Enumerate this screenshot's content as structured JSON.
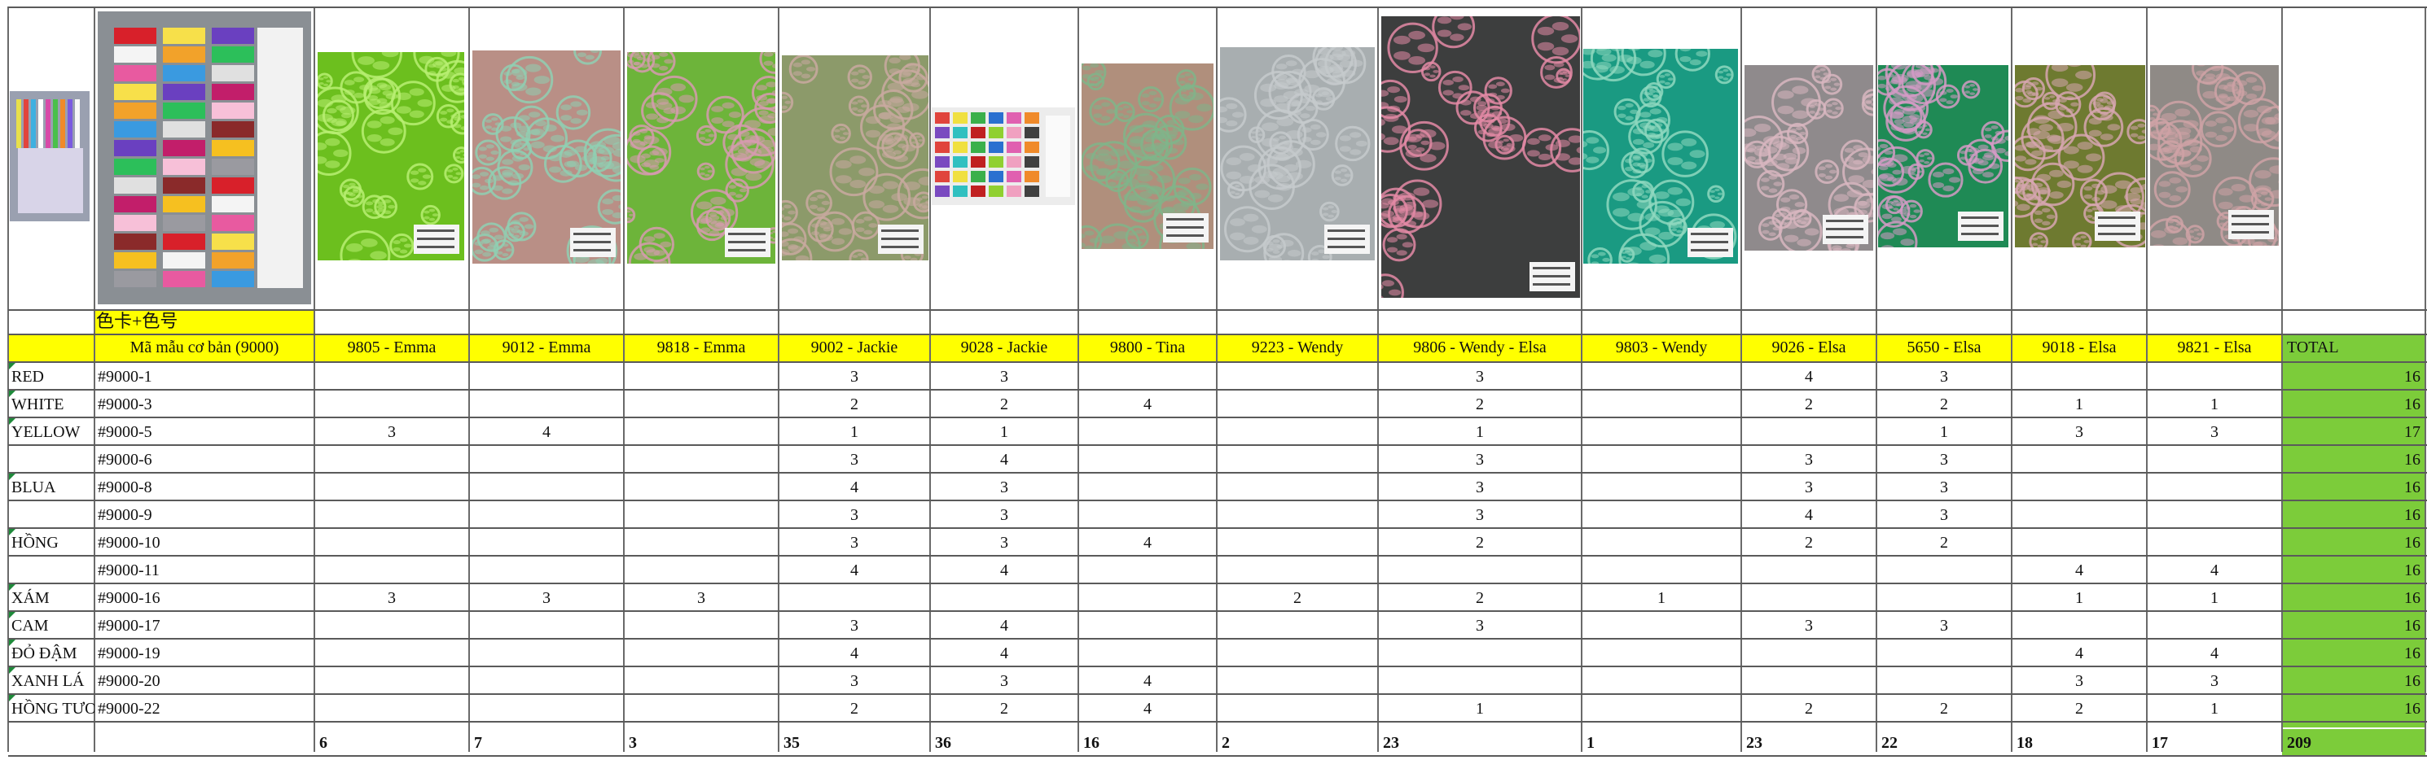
{
  "sheet": {
    "card_label": "色卡+色号",
    "header_code": "Mã mẫu cơ bản (9000)",
    "total_header": "TOTAL",
    "columns": [
      "9805 - Emma",
      "9012 - Emma",
      "9818 - Emma",
      "9002 - Jackie",
      "9028 - Jackie",
      "9800 - Tina",
      "9223 - Wendy",
      "9806 - Wendy - Elsa",
      "9803 - Wendy",
      "9026 - Elsa",
      "5650 - Elsa",
      "9018 - Elsa",
      "9821 - Elsa"
    ],
    "rows": [
      {
        "color": "RED",
        "code": "#9000-1",
        "values": [
          "",
          "",
          "",
          "3",
          "3",
          "",
          "",
          "3",
          "",
          "4",
          "3",
          "",
          ""
        ],
        "total": "16"
      },
      {
        "color": "WHITE",
        "code": "#9000-3",
        "values": [
          "",
          "",
          "",
          "2",
          "2",
          "4",
          "",
          "2",
          "",
          "2",
          "2",
          "1",
          "1"
        ],
        "total": "16"
      },
      {
        "color": "YELLOW",
        "code": "#9000-5",
        "values": [
          "3",
          "4",
          "",
          "1",
          "1",
          "",
          "",
          "1",
          "",
          "",
          "1",
          "3",
          "3"
        ],
        "total": "17"
      },
      {
        "color": "",
        "code": "#9000-6",
        "values": [
          "",
          "",
          "",
          "3",
          "4",
          "",
          "",
          "3",
          "",
          "3",
          "3",
          "",
          ""
        ],
        "total": "16"
      },
      {
        "color": "BLUA",
        "code": "#9000-8",
        "values": [
          "",
          "",
          "",
          "4",
          "3",
          "",
          "",
          "3",
          "",
          "3",
          "3",
          "",
          ""
        ],
        "total": "16"
      },
      {
        "color": "",
        "code": "#9000-9",
        "values": [
          "",
          "",
          "",
          "3",
          "3",
          "",
          "",
          "3",
          "",
          "4",
          "3",
          "",
          ""
        ],
        "total": "16"
      },
      {
        "color": "HỒNG",
        "code": "#9000-10",
        "values": [
          "",
          "",
          "",
          "3",
          "3",
          "4",
          "",
          "2",
          "",
          "2",
          "2",
          "",
          ""
        ],
        "total": "16"
      },
      {
        "color": "",
        "code": "#9000-11",
        "values": [
          "",
          "",
          "",
          "4",
          "4",
          "",
          "",
          "",
          "",
          "",
          "",
          "4",
          "4"
        ],
        "total": "16"
      },
      {
        "color": "XÁM",
        "code": "#9000-16",
        "values": [
          "3",
          "3",
          "3",
          "",
          "",
          "",
          "2",
          "2",
          "1",
          "",
          "",
          "1",
          "1"
        ],
        "total": "16"
      },
      {
        "color": "CAM",
        "code": "#9000-17",
        "values": [
          "",
          "",
          "",
          "3",
          "4",
          "",
          "",
          "3",
          "",
          "3",
          "3",
          "",
          ""
        ],
        "total": "16"
      },
      {
        "color": "ĐỎ ĐẬM",
        "code": "#9000-19",
        "values": [
          "",
          "",
          "",
          "4",
          "4",
          "",
          "",
          "",
          "",
          "",
          "",
          "4",
          "4"
        ],
        "total": "16"
      },
      {
        "color": "XANH LÁ",
        "code": "#9000-20",
        "values": [
          "",
          "",
          "",
          "3",
          "3",
          "4",
          "",
          "",
          "",
          "",
          "",
          "3",
          "3"
        ],
        "total": "16"
      },
      {
        "color": "HỒNG TƯƠI",
        "code": "#9000-22",
        "values": [
          "",
          "",
          "",
          "2",
          "2",
          "4",
          "",
          "1",
          "",
          "2",
          "2",
          "2",
          "1"
        ],
        "total": "16"
      }
    ],
    "column_totals": [
      "6",
      "7",
      "3",
      "35",
      "36",
      "16",
      "2",
      "23",
      "1",
      "23",
      "22",
      "18",
      "17"
    ],
    "grand_total": "209",
    "colors": {
      "yellow": "#ffff00",
      "total_green": "#7ccc3a",
      "grid": "#5a5a5a"
    },
    "photos": [
      {
        "name": "thread-sample-photo"
      },
      {
        "name": "color-card-photo"
      },
      {
        "name": "fabric-9805-photo",
        "bg": "#6cbf1e",
        "pattern": "#b9ef73"
      },
      {
        "name": "fabric-9012-photo",
        "bg": "#b98f86",
        "pattern": "#8fd0b3"
      },
      {
        "name": "fabric-9818-photo",
        "bg": "#6db43a",
        "pattern": "#d79ab0"
      },
      {
        "name": "fabric-9002-photo",
        "bg": "#8c9a6a",
        "pattern": "#c9a9a0"
      },
      {
        "name": "fabric-9028-photo",
        "bg": "#2a2a3a",
        "pattern": "#f0f0f0"
      },
      {
        "name": "fabric-9800-photo",
        "bg": "#b08f7c",
        "pattern": "#80b58a"
      },
      {
        "name": "fabric-9223-photo",
        "bg": "#a8aeb0",
        "pattern": "#c5cacc"
      },
      {
        "name": "fabric-9806-photo",
        "bg": "#3d3e3e",
        "pattern": "#e48aa6"
      },
      {
        "name": "fabric-9803-photo",
        "bg": "#1a9a82",
        "pattern": "#8fd8c0"
      },
      {
        "name": "fabric-9026-photo",
        "bg": "#8f8a8c",
        "pattern": "#d8b6c0"
      },
      {
        "name": "fabric-5650-photo",
        "bg": "#1f8a55",
        "pattern": "#d59ac6"
      },
      {
        "name": "fabric-9018-photo",
        "bg": "#6e7a30",
        "pattern": "#d7a6b0"
      },
      {
        "name": "fabric-9821-photo",
        "bg": "#8f8a86",
        "pattern": "#cfa2a6"
      }
    ]
  }
}
